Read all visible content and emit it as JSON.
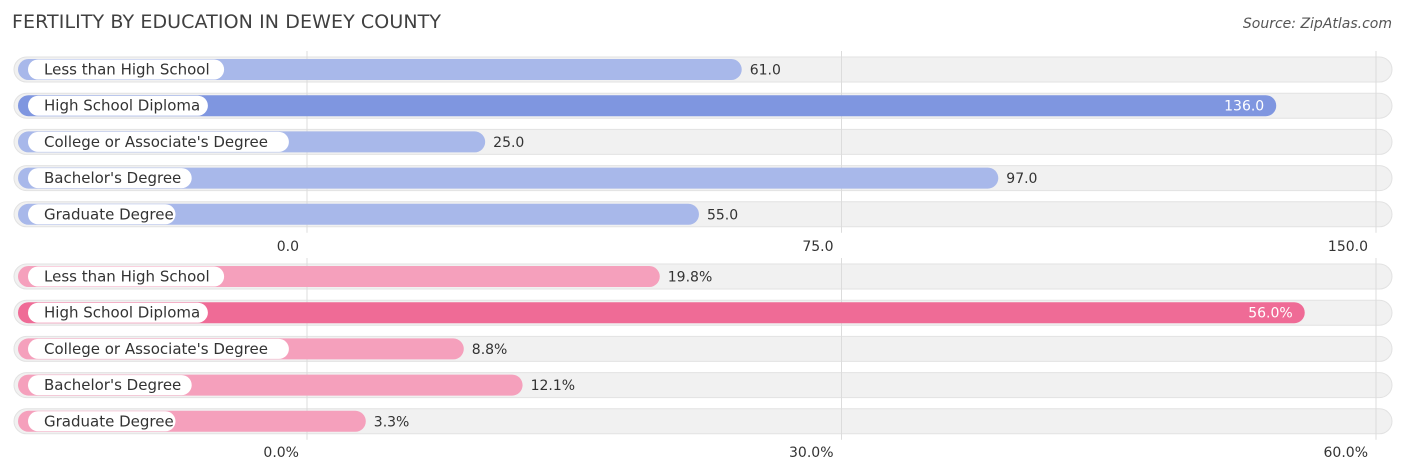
{
  "title": "FERTILITY BY EDUCATION IN DEWEY COUNTY",
  "source": "Source: ZipAtlas.com",
  "chart_data": [
    {
      "type": "bar",
      "orientation": "horizontal",
      "categories": [
        "Less than High School",
        "High School Diploma",
        "College or Associate's Degree",
        "Bachelor's Degree",
        "Graduate Degree"
      ],
      "values": [
        61.0,
        136.0,
        25.0,
        97.0,
        55.0
      ],
      "value_labels": [
        "61.0",
        "136.0",
        "25.0",
        "97.0",
        "55.0"
      ],
      "xlim": [
        0,
        150
      ],
      "ticks": [
        0,
        75,
        150
      ],
      "tick_labels": [
        "0.0",
        "75.0",
        "150.0"
      ],
      "grid": true,
      "colors": {
        "max": "#7f96e0",
        "other": "#a8b8ea",
        "track": "#f1f1f1"
      }
    },
    {
      "type": "bar",
      "orientation": "horizontal",
      "categories": [
        "Less than High School",
        "High School Diploma",
        "College or Associate's Degree",
        "Bachelor's Degree",
        "Graduate Degree"
      ],
      "values": [
        19.8,
        56.0,
        8.8,
        12.1,
        3.3
      ],
      "value_labels": [
        "19.8%",
        "56.0%",
        "8.8%",
        "12.1%",
        "3.3%"
      ],
      "xlim": [
        0,
        60
      ],
      "ticks": [
        0,
        30,
        60
      ],
      "tick_labels": [
        "0.0%",
        "30.0%",
        "60.0%"
      ],
      "grid": true,
      "colors": {
        "max": "#ef6b96",
        "other": "#f5a0bc",
        "track": "#f1f1f1"
      }
    }
  ]
}
